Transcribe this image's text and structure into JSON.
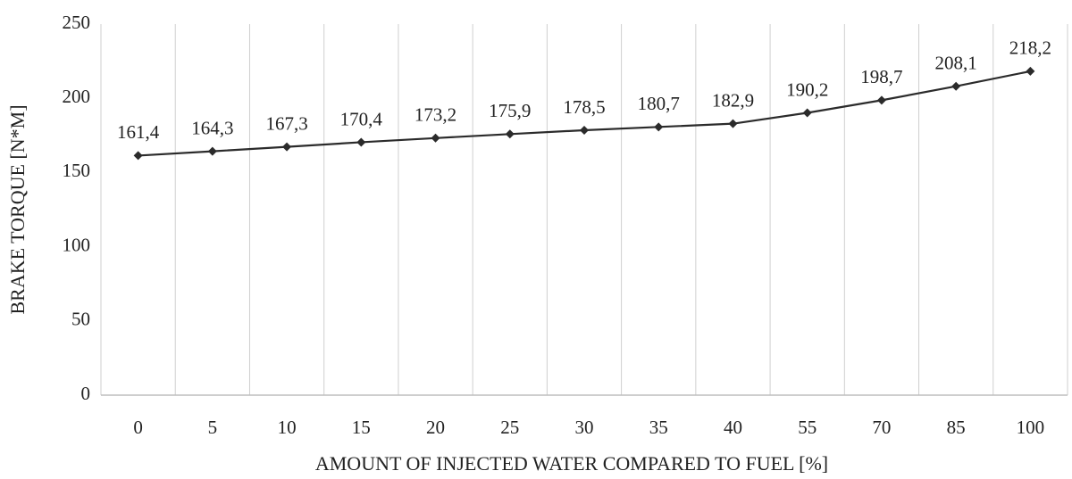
{
  "chart_data": {
    "type": "line",
    "xlabel": "AMOUNT OF INJECTED WATER COMPARED TO FUEL [%]",
    "ylabel": "BRAKE TORQUE [N*M]",
    "categories": [
      "0",
      "5",
      "10",
      "15",
      "20",
      "25",
      "30",
      "35",
      "40",
      "55",
      "70",
      "85",
      "100"
    ],
    "values": [
      161.4,
      164.3,
      167.3,
      170.4,
      173.2,
      175.9,
      178.5,
      180.7,
      182.9,
      190.2,
      198.7,
      208.1,
      218.2
    ],
    "value_labels": [
      "161,4",
      "164,3",
      "167,3",
      "170,4",
      "173,2",
      "175,9",
      "178,5",
      "180,7",
      "182,9",
      "190,2",
      "198,7",
      "208,1",
      "218,2"
    ],
    "color": "#2b2b2b",
    "marker": "diamond",
    "ylim": [
      0,
      250
    ],
    "yticks": [
      0,
      50,
      100,
      150,
      200,
      250
    ],
    "grid": "x"
  }
}
